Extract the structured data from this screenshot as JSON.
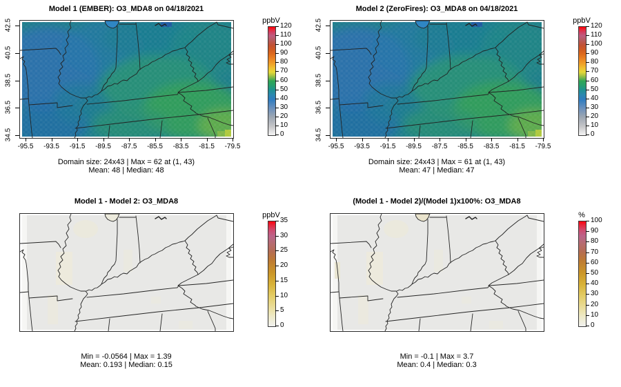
{
  "figure": {
    "background": "#ffffff",
    "description": "Four-panel model comparison of O3_MDA8 surface maps over the central/eastern US"
  },
  "palette": {
    "o3_low_gray": "#f5f5f5",
    "o3_blue": "#2e7cc0",
    "o3_teal": "#1e9290",
    "o3_green": "#2fa657",
    "o3_yellow": "#e5d837",
    "o3_orange": "#ea8121",
    "o3_red": "#fa0006",
    "diff_base_gray": "#e8e8e6",
    "diff_beige": "#ece9d8",
    "map_border": "#2a2a2a"
  },
  "chart_data": [
    {
      "type": "heatmap",
      "panel": "top-left",
      "title": "Model 1 (EMBER): O3_MDA8 on 04/18/2021",
      "model": "Model 1 (EMBER)",
      "variable": "O3_MDA8",
      "date": "04/18/2021",
      "x_ticks": [
        "-95.5",
        "-93.5",
        "-91.5",
        "-89.5",
        "-87.5",
        "-85.5",
        "-83.5",
        "-81.5",
        "-79.5"
      ],
      "y_ticks": [
        "42.5",
        "40.5",
        "38.5",
        "36.5",
        "34.5"
      ],
      "colorbar": {
        "label": "ppbV",
        "min": 0,
        "max": 120,
        "ticks": [
          0,
          10,
          20,
          30,
          40,
          50,
          60,
          70,
          80,
          90,
          100,
          110,
          120
        ]
      },
      "stats": {
        "domain_size": "24x43",
        "max": 62,
        "max_at": [
          1,
          43
        ],
        "mean": 48,
        "median": 48
      },
      "caption_line1": "Domain size: 24x43 | Max = 62 at (1, 43)",
      "caption_line2": "Mean: 48 |  Median: 48",
      "field_summary": "values ~35-62 ppbV: blue (~40) over Missouri/Arkansas/Illinois, teal-green (~48-52) over Kentucky/Ohio, green-yellow (~55-62) over Tennessee/Carolinas, maximum 62 at bottom-right corner, Lake Michigan lobe blue"
    },
    {
      "type": "heatmap",
      "panel": "top-right",
      "title": "Model 2 (ZeroFires): O3_MDA8 on 04/18/2021",
      "model": "Model 2 (ZeroFires)",
      "variable": "O3_MDA8",
      "date": "04/18/2021",
      "x_ticks": [
        "-95.5",
        "-93.5",
        "-91.5",
        "-89.5",
        "-87.5",
        "-85.5",
        "-83.5",
        "-81.5",
        "-79.5"
      ],
      "y_ticks": [
        "42.5",
        "40.5",
        "38.5",
        "36.5",
        "34.5"
      ],
      "colorbar": {
        "label": "ppbV",
        "min": 0,
        "max": 120,
        "ticks": [
          0,
          10,
          20,
          30,
          40,
          50,
          60,
          70,
          80,
          90,
          100,
          110,
          120
        ]
      },
      "stats": {
        "domain_size": "24x43",
        "max": 61,
        "max_at": [
          1,
          43
        ],
        "mean": 47,
        "median": 47
      },
      "caption_line1": "Domain size: 24x43 | Max = 61 at (1, 43)",
      "caption_line2": "Mean: 47 |  Median: 47",
      "field_summary": "nearly identical to Model 1: blue northwest, teal-green center, green-yellow southeast, maximum 61 at bottom-right corner"
    },
    {
      "type": "heatmap",
      "panel": "bottom-left",
      "title": "Model 1 - Model 2: O3_MDA8",
      "variable": "O3_MDA8",
      "x_ticks": null,
      "y_ticks": null,
      "colorbar": {
        "label": "ppbV",
        "min": 0,
        "max": 35,
        "ticks": [
          0,
          5,
          10,
          15,
          20,
          25,
          30,
          35
        ]
      },
      "stats": {
        "min": -0.0564,
        "max": 1.39,
        "mean": 0.193,
        "median": 0.15
      },
      "caption_line1": "Min = -0.0564 | Max = 1.39",
      "caption_line2": "Mean: 0.193 |  Median: 0.15",
      "field_summary": "near-zero difference everywhere: uniform light gray with faint pale-beige patches over Illinois and around Lake Michigan; lighter edge columns at left and right"
    },
    {
      "type": "heatmap",
      "panel": "bottom-right",
      "title": "(Model 1 - Model 2)/(Model 1)x100%: O3_MDA8",
      "variable": "O3_MDA8",
      "x_ticks": null,
      "y_ticks": null,
      "colorbar": {
        "label": "%",
        "min": 0,
        "max": 100,
        "ticks": [
          0,
          10,
          20,
          30,
          40,
          50,
          60,
          70,
          80,
          90,
          100
        ]
      },
      "stats": {
        "min": -0.1,
        "max": 3.7,
        "mean": 0.4,
        "median": 0.3
      },
      "caption_line1": "Min = -0.1 | Max = 3.7",
      "caption_line2": "Mean: 0.4 |  Median: 0.3",
      "field_summary": "near-zero percent difference: uniform light gray, beige Lake Michigan lobe and faint beige patch at west edge; lighter edge columns at left and right"
    }
  ]
}
